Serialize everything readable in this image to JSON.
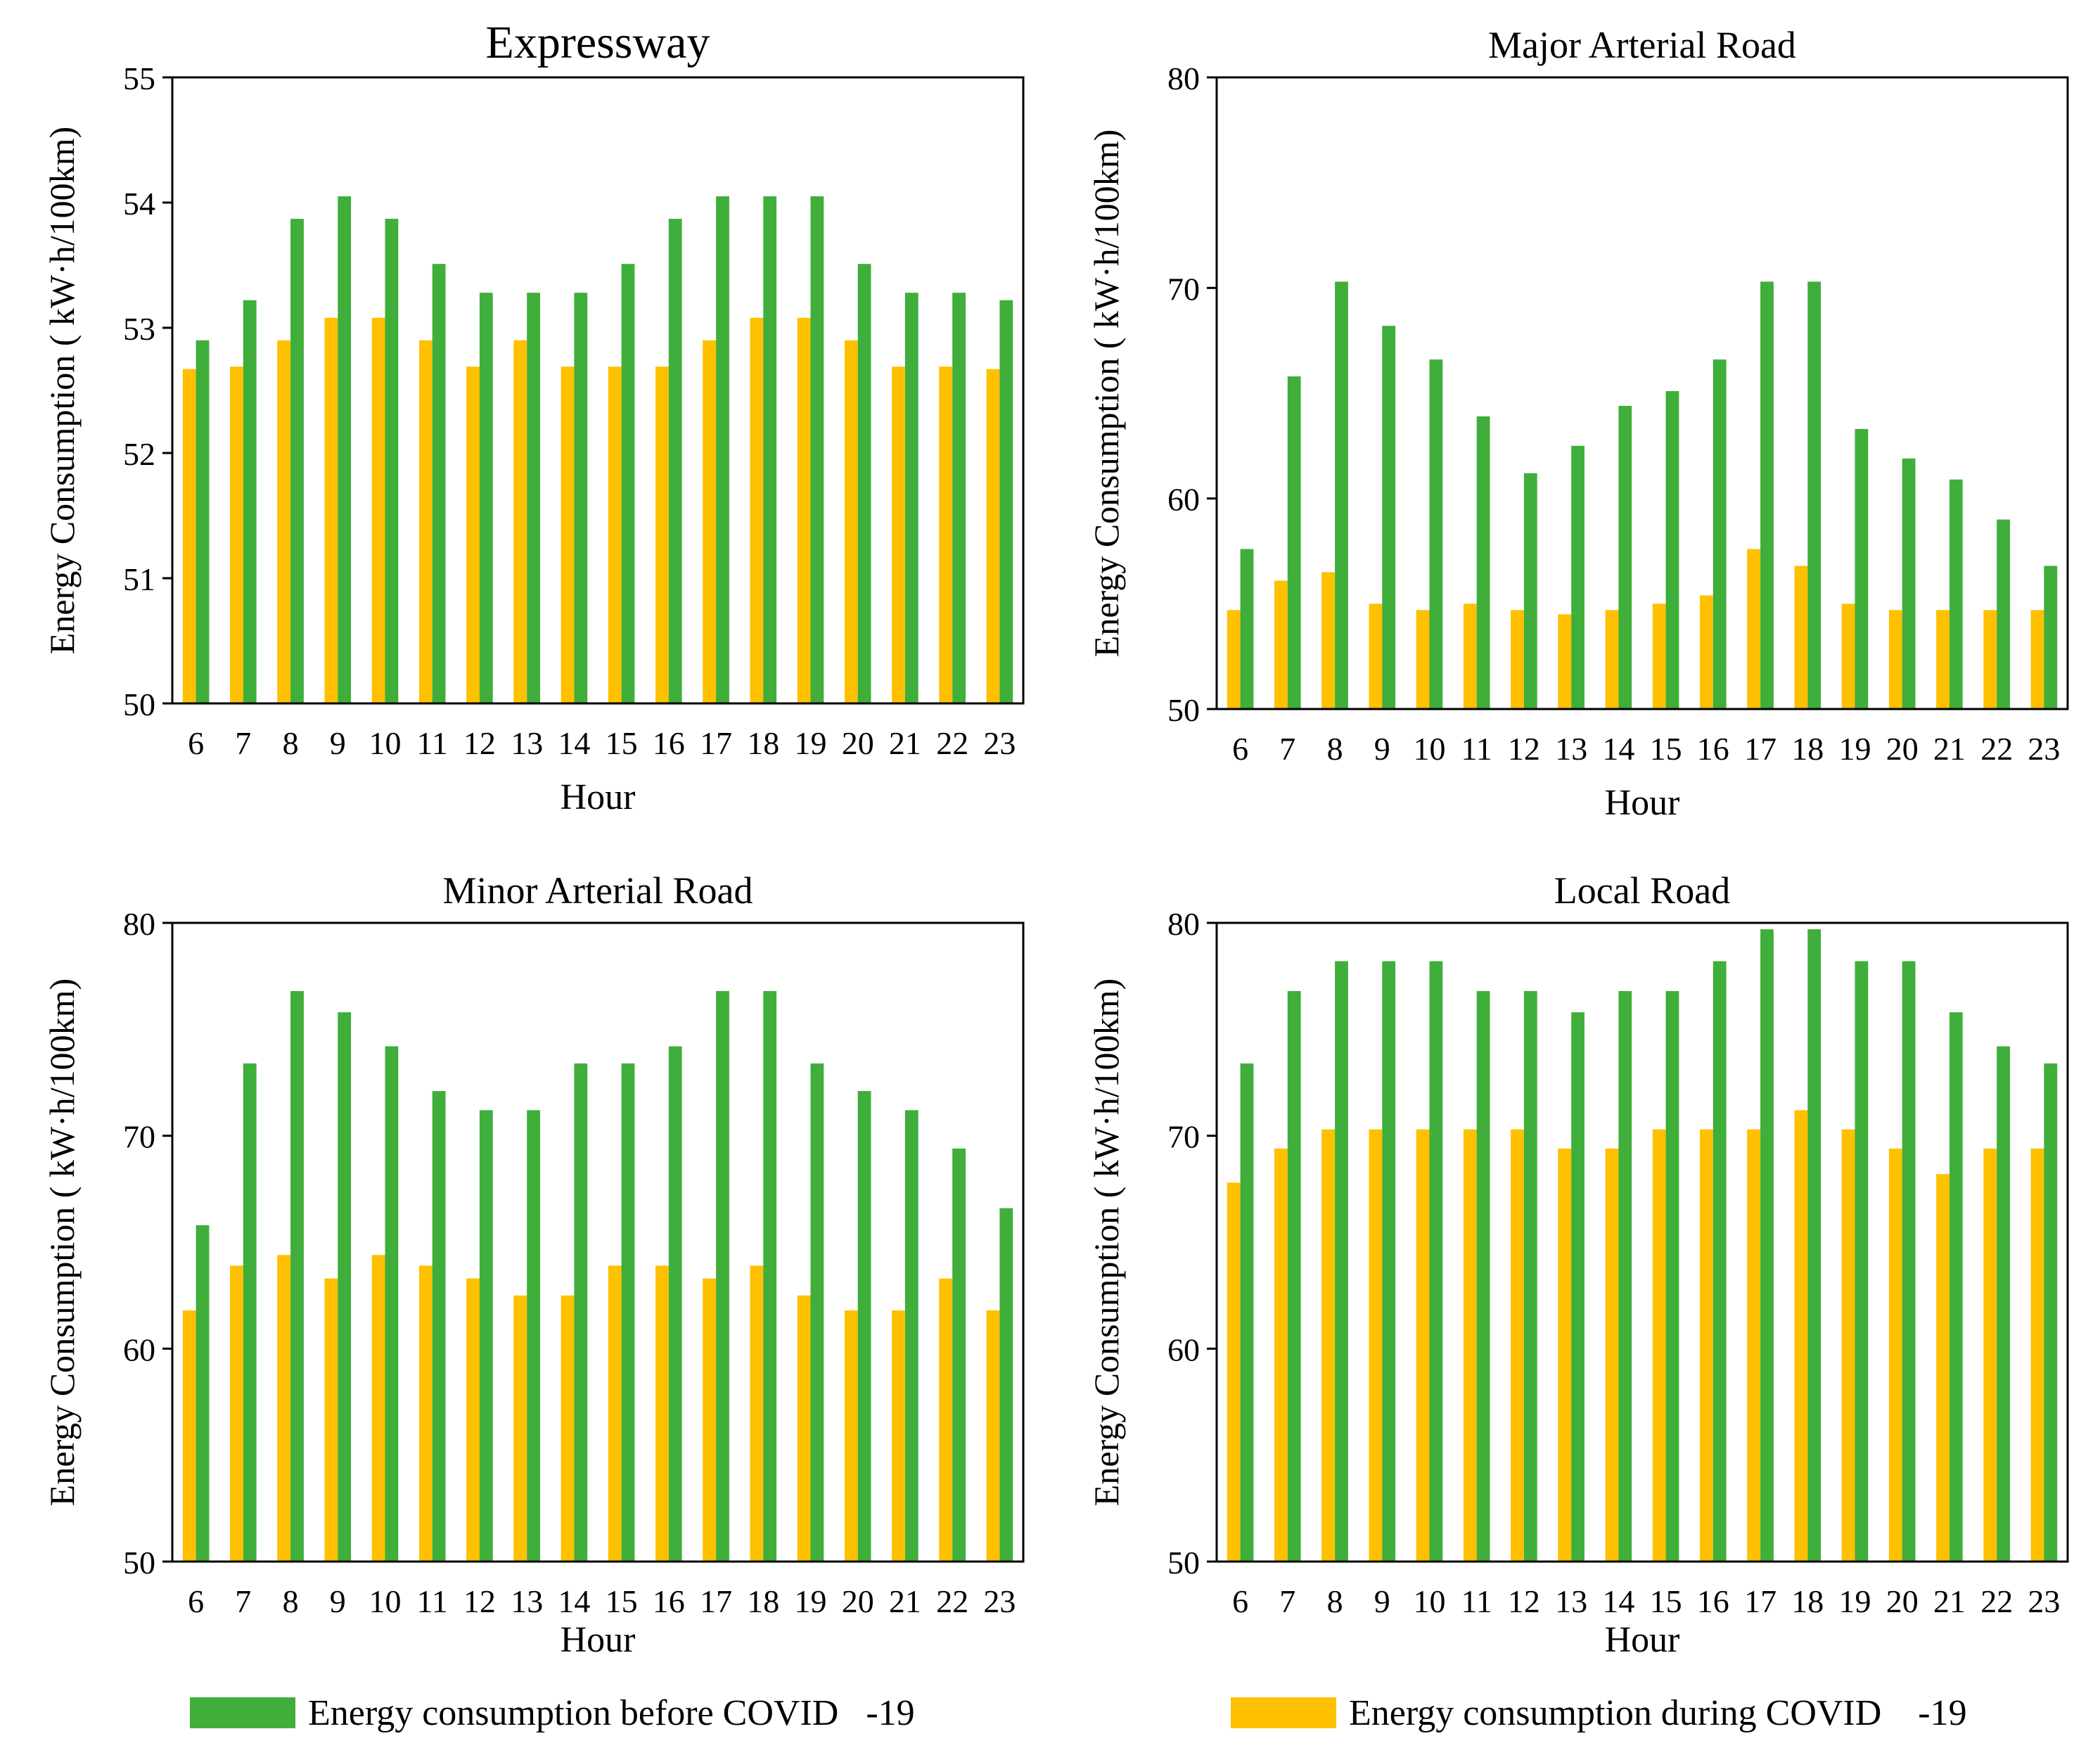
{
  "colors": {
    "before": "#3FAE3A",
    "during": "#FFC000"
  },
  "legend": {
    "before_label": "Energy consumption before COVID   -19",
    "during_label": "Energy consumption during COVID    -19"
  },
  "chart_data": [
    {
      "type": "bar",
      "title": "Expressway",
      "xlabel": "Hour",
      "ylabel": "Energy Consumption ( kW·h/100km)",
      "ylim": [
        50,
        55
      ],
      "yticks": [
        50,
        51,
        52,
        53,
        54,
        55
      ],
      "categories": [
        "6",
        "7",
        "8",
        "9",
        "10",
        "11",
        "12",
        "13",
        "14",
        "15",
        "16",
        "17",
        "18",
        "19",
        "20",
        "21",
        "22",
        "23"
      ],
      "series": [
        {
          "name": "Energy consumption during COVID -19",
          "values": [
            52.67,
            52.69,
            52.9,
            53.08,
            53.08,
            52.9,
            52.69,
            52.9,
            52.69,
            52.69,
            52.69,
            52.9,
            53.08,
            53.08,
            52.9,
            52.69,
            52.69,
            52.67
          ]
        },
        {
          "name": "Energy consumption before COVID -19",
          "values": [
            52.9,
            53.22,
            53.87,
            54.05,
            53.87,
            53.51,
            53.28,
            53.28,
            53.28,
            53.51,
            53.87,
            54.05,
            54.05,
            54.05,
            53.51,
            53.28,
            53.28,
            53.22
          ]
        }
      ]
    },
    {
      "type": "bar",
      "title": "Major Arterial Road",
      "xlabel": "Hour",
      "ylabel": "Energy Consumption ( kW·h/100km)",
      "ylim": [
        50,
        80
      ],
      "yticks": [
        50,
        60,
        70,
        80
      ],
      "categories": [
        "6",
        "7",
        "8",
        "9",
        "10",
        "11",
        "12",
        "13",
        "14",
        "15",
        "16",
        "17",
        "18",
        "19",
        "20",
        "21",
        "22",
        "23"
      ],
      "series": [
        {
          "name": "Energy consumption during COVID -19",
          "values": [
            54.7,
            56.1,
            56.5,
            55.0,
            54.7,
            55.0,
            54.7,
            54.5,
            54.7,
            55.0,
            55.4,
            57.6,
            56.8,
            55.0,
            54.7,
            54.7,
            54.7,
            54.7
          ]
        },
        {
          "name": "Energy consumption before COVID -19",
          "values": [
            57.6,
            65.8,
            70.3,
            68.2,
            66.6,
            63.9,
            61.2,
            62.5,
            64.4,
            65.1,
            66.6,
            70.3,
            70.3,
            63.3,
            61.9,
            60.9,
            59.0,
            56.8
          ]
        }
      ]
    },
    {
      "type": "bar",
      "title": "Minor Arterial Road",
      "xlabel": "Hour",
      "ylabel": "Energy Consumption ( kW·h/100km)",
      "ylim": [
        50,
        80
      ],
      "yticks": [
        50,
        60,
        70,
        80
      ],
      "categories": [
        "6",
        "7",
        "8",
        "9",
        "10",
        "11",
        "12",
        "13",
        "14",
        "15",
        "16",
        "17",
        "18",
        "19",
        "20",
        "21",
        "22",
        "23"
      ],
      "series": [
        {
          "name": "Energy consumption during COVID -19",
          "values": [
            61.8,
            63.9,
            64.4,
            63.3,
            64.4,
            63.9,
            63.3,
            62.5,
            62.5,
            63.9,
            63.9,
            63.3,
            63.9,
            62.5,
            61.8,
            61.8,
            63.3,
            61.8
          ]
        },
        {
          "name": "Energy consumption before COVID -19",
          "values": [
            65.8,
            73.4,
            76.8,
            75.8,
            74.2,
            72.1,
            71.2,
            71.2,
            73.4,
            73.4,
            74.2,
            76.8,
            76.8,
            73.4,
            72.1,
            71.2,
            69.4,
            66.6
          ]
        }
      ]
    },
    {
      "type": "bar",
      "title": "Local Road",
      "xlabel": "Hour",
      "ylabel": "Energy Consumption ( kW·h/100km)",
      "ylim": [
        50,
        80
      ],
      "yticks": [
        50,
        60,
        70,
        80
      ],
      "categories": [
        "6",
        "7",
        "8",
        "9",
        "10",
        "11",
        "12",
        "13",
        "14",
        "15",
        "16",
        "17",
        "18",
        "19",
        "20",
        "21",
        "22",
        "23"
      ],
      "series": [
        {
          "name": "Energy consumption during COVID -19",
          "values": [
            67.8,
            69.4,
            70.3,
            70.3,
            70.3,
            70.3,
            70.3,
            69.4,
            69.4,
            70.3,
            70.3,
            70.3,
            71.2,
            70.3,
            69.4,
            68.2,
            69.4,
            69.4
          ]
        },
        {
          "name": "Energy consumption before COVID -19",
          "values": [
            73.4,
            76.8,
            78.2,
            78.2,
            78.2,
            76.8,
            76.8,
            75.8,
            76.8,
            76.8,
            78.2,
            79.7,
            79.7,
            78.2,
            78.2,
            75.8,
            74.2,
            73.4
          ]
        }
      ]
    }
  ]
}
